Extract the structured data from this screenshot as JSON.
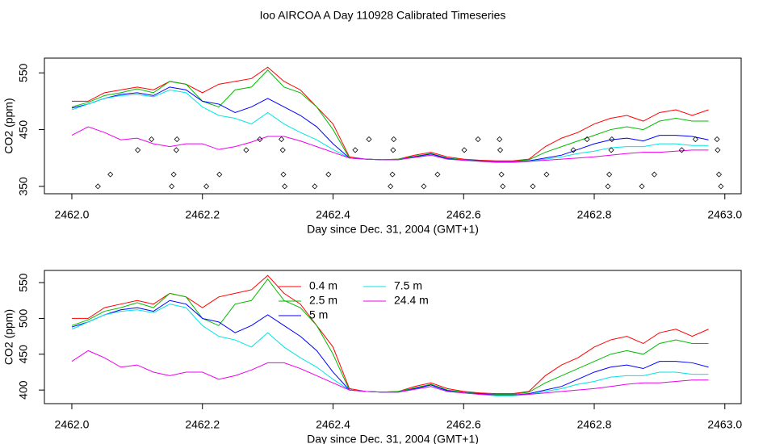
{
  "chart_data": [
    {
      "type": "line",
      "title": "Ioo AIRCOA A  Day 110928  Calibrated Timeseries",
      "xlabel": "Day since Dec. 31, 2004 (GMT+1)",
      "ylabel": "CO2 (ppm)",
      "xlim": [
        2461.958,
        2463.025
      ],
      "ylim": [
        337,
        576
      ],
      "xticks": [
        {
          "value": 2462.0,
          "label": "2462.0"
        },
        {
          "value": 2462.2,
          "label": "2462.2"
        },
        {
          "value": 2462.4,
          "label": "2462.4"
        },
        {
          "value": 2462.6,
          "label": "2462.6"
        },
        {
          "value": 2462.8,
          "label": "2462.8"
        },
        {
          "value": 2463.0,
          "label": "2463.0"
        }
      ],
      "yticks": [
        350,
        450,
        550
      ],
      "x": [
        2462.0,
        2462.025,
        2462.05,
        2462.075,
        2462.1,
        2462.125,
        2462.15,
        2462.175,
        2462.2,
        2462.225,
        2462.25,
        2462.275,
        2462.3,
        2462.325,
        2462.35,
        2462.375,
        2462.4,
        2462.425,
        2462.45,
        2462.475,
        2462.5,
        2462.525,
        2462.55,
        2462.575,
        2462.6,
        2462.625,
        2462.65,
        2462.675,
        2462.7,
        2462.725,
        2462.75,
        2462.775,
        2462.8,
        2462.825,
        2462.85,
        2462.875,
        2462.9,
        2462.925,
        2462.95,
        2462.975
      ],
      "series": [
        {
          "color": "#ff0000",
          "values": [
            500,
            500,
            515,
            520,
            525,
            520,
            535,
            530,
            515,
            530,
            535,
            540,
            560,
            535,
            520,
            490,
            460,
            402,
            398,
            397,
            398,
            405,
            410,
            402,
            398,
            396,
            395,
            395,
            398,
            420,
            435,
            445,
            460,
            470,
            475,
            465,
            480,
            485,
            475,
            485
          ]
        },
        {
          "color": "#00bb00",
          "values": [
            490,
            498,
            510,
            515,
            522,
            515,
            535,
            530,
            500,
            490,
            520,
            525,
            555,
            525,
            515,
            490,
            450,
            400,
            398,
            397,
            398,
            403,
            408,
            400,
            397,
            395,
            394,
            394,
            397,
            410,
            420,
            430,
            440,
            450,
            455,
            450,
            465,
            470,
            465,
            465
          ]
        },
        {
          "color": "#0000ff",
          "values": [
            488,
            495,
            505,
            512,
            515,
            510,
            525,
            520,
            500,
            495,
            480,
            490,
            505,
            490,
            475,
            455,
            425,
            400,
            398,
            397,
            397,
            402,
            407,
            399,
            396,
            395,
            393,
            393,
            395,
            400,
            405,
            415,
            425,
            432,
            435,
            430,
            440,
            440,
            438,
            432
          ]
        },
        {
          "color": "#00e5e5",
          "values": [
            485,
            495,
            505,
            510,
            512,
            508,
            520,
            515,
            490,
            475,
            470,
            460,
            480,
            460,
            445,
            432,
            415,
            400,
            398,
            397,
            397,
            401,
            405,
            398,
            396,
            394,
            392,
            392,
            394,
            398,
            402,
            408,
            412,
            418,
            420,
            420,
            425,
            425,
            422,
            422
          ]
        },
        {
          "color": "#ee00ee",
          "values": [
            440,
            455,
            445,
            432,
            435,
            425,
            420,
            425,
            425,
            415,
            420,
            428,
            438,
            438,
            430,
            420,
            410,
            400,
            398,
            397,
            397,
            401,
            405,
            398,
            396,
            394,
            393,
            393,
            394,
            396,
            398,
            400,
            402,
            405,
            408,
            410,
            410,
            412,
            414,
            414
          ]
        }
      ],
      "points": {
        "x": [
          2462.04,
          2462.059,
          2462.101,
          2462.122,
          2462.153,
          2462.156,
          2462.16,
          2462.161,
          2462.206,
          2462.226,
          2462.267,
          2462.288,
          2462.321,
          2462.323,
          2462.324,
          2462.326,
          2462.372,
          2462.393,
          2462.434,
          2462.455,
          2462.488,
          2462.491,
          2462.492,
          2462.493,
          2462.539,
          2462.56,
          2462.601,
          2462.622,
          2462.655,
          2462.656,
          2462.658,
          2462.66,
          2462.706,
          2462.727,
          2462.768,
          2462.789,
          2462.821,
          2462.823,
          2462.826,
          2462.827,
          2462.873,
          2462.892,
          2462.934,
          2462.955,
          2462.988,
          2462.989,
          2462.991,
          2462.994
        ],
        "y": [
          350,
          371,
          414,
          433,
          350,
          371,
          414,
          433,
          350,
          371,
          414,
          433,
          433,
          414,
          371,
          350,
          350,
          371,
          414,
          433,
          350,
          371,
          414,
          433,
          350,
          371,
          414,
          433,
          433,
          414,
          371,
          350,
          350,
          371,
          414,
          433,
          350,
          371,
          414,
          433,
          350,
          371,
          414,
          433,
          433,
          414,
          371,
          350
        ]
      }
    },
    {
      "type": "line",
      "xlabel": "Day since Dec. 31, 2004 (GMT+1)",
      "ylabel": "CO2 (ppm)",
      "xlim": [
        2461.958,
        2463.025
      ],
      "ylim": [
        381,
        567
      ],
      "xticks": [
        {
          "value": 2462.0,
          "label": "2462.0"
        },
        {
          "value": 2462.2,
          "label": "2462.2"
        },
        {
          "value": 2462.4,
          "label": "2462.4"
        },
        {
          "value": 2462.6,
          "label": "2462.6"
        },
        {
          "value": 2462.8,
          "label": "2462.8"
        },
        {
          "value": 2463.0,
          "label": "2463.0"
        }
      ],
      "yticks": [
        400,
        450,
        500,
        550
      ],
      "legend": "top",
      "x": [
        2462.0,
        2462.025,
        2462.05,
        2462.075,
        2462.1,
        2462.125,
        2462.15,
        2462.175,
        2462.2,
        2462.225,
        2462.25,
        2462.275,
        2462.3,
        2462.325,
        2462.35,
        2462.375,
        2462.4,
        2462.425,
        2462.45,
        2462.475,
        2462.5,
        2462.525,
        2462.55,
        2462.575,
        2462.6,
        2462.625,
        2462.65,
        2462.675,
        2462.7,
        2462.725,
        2462.75,
        2462.775,
        2462.8,
        2462.825,
        2462.85,
        2462.875,
        2462.9,
        2462.925,
        2462.95,
        2462.975
      ],
      "series": [
        {
          "name": "0.4 m",
          "color": "#ff0000",
          "values": [
            500,
            500,
            515,
            520,
            525,
            520,
            535,
            530,
            515,
            530,
            535,
            540,
            560,
            535,
            520,
            490,
            460,
            402,
            398,
            397,
            398,
            405,
            410,
            402,
            398,
            396,
            395,
            395,
            398,
            420,
            435,
            445,
            460,
            470,
            475,
            465,
            480,
            485,
            475,
            485
          ]
        },
        {
          "name": "2.5 m",
          "color": "#00bb00",
          "values": [
            490,
            498,
            510,
            515,
            522,
            515,
            535,
            530,
            500,
            490,
            520,
            525,
            555,
            525,
            515,
            490,
            450,
            400,
            398,
            397,
            398,
            403,
            408,
            400,
            397,
            395,
            394,
            394,
            397,
            410,
            420,
            430,
            440,
            450,
            455,
            450,
            465,
            470,
            465,
            465
          ]
        },
        {
          "name": "5 m",
          "color": "#0000ff",
          "values": [
            488,
            495,
            505,
            512,
            515,
            510,
            525,
            520,
            500,
            495,
            480,
            490,
            505,
            490,
            475,
            455,
            425,
            400,
            398,
            397,
            397,
            402,
            407,
            399,
            396,
            395,
            393,
            393,
            395,
            400,
            405,
            415,
            425,
            432,
            435,
            430,
            440,
            440,
            438,
            432
          ]
        },
        {
          "name": "7.5 m",
          "color": "#00e5e5",
          "values": [
            485,
            495,
            505,
            510,
            512,
            508,
            520,
            515,
            490,
            475,
            470,
            460,
            480,
            460,
            445,
            432,
            415,
            400,
            398,
            397,
            397,
            401,
            405,
            398,
            396,
            394,
            392,
            392,
            394,
            398,
            402,
            408,
            412,
            418,
            420,
            420,
            425,
            425,
            422,
            422
          ]
        },
        {
          "name": "24.4 m",
          "color": "#ee00ee",
          "values": [
            440,
            455,
            445,
            432,
            435,
            425,
            420,
            425,
            425,
            415,
            420,
            428,
            438,
            438,
            430,
            420,
            410,
            400,
            398,
            397,
            397,
            401,
            405,
            398,
            396,
            394,
            393,
            393,
            394,
            396,
            398,
            400,
            402,
            405,
            408,
            410,
            410,
            412,
            414,
            414
          ]
        }
      ]
    }
  ]
}
